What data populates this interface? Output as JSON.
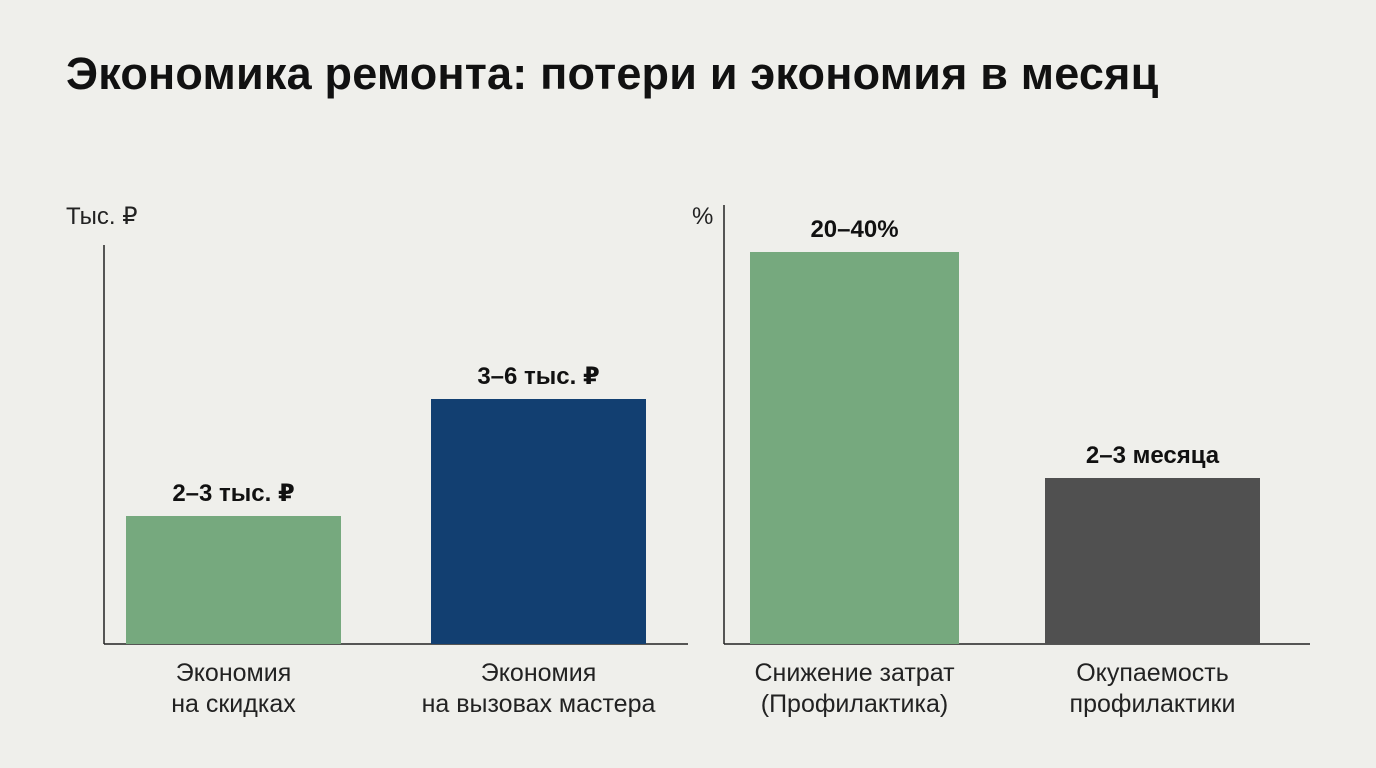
{
  "title": "Экономика ремонта: потери и экономия в месяц",
  "chart_data": [
    {
      "type": "bar",
      "unit_label": "Тыс. ₽",
      "categories": [
        [
          "Экономия",
          "на скидках"
        ],
        [
          "Экономия",
          "на вызовах мастера"
        ]
      ],
      "value_labels": [
        "2–3 тыс. ₽",
        "3–6 тыс. ₽"
      ],
      "values": [
        [
          2,
          3
        ],
        [
          3,
          6
        ]
      ],
      "colors": [
        "#76a97e",
        "#123f71"
      ]
    },
    {
      "type": "bar",
      "unit_label": "%",
      "categories": [
        [
          "Снижение затрат",
          "(Профилактика)"
        ],
        [
          "Окупаемость",
          "профилактики"
        ]
      ],
      "value_labels": [
        "20–40%",
        "2–3 месяца"
      ],
      "values": [
        [
          20,
          40
        ],
        [
          2,
          3
        ]
      ],
      "colors": [
        "#76a97e",
        "#505050"
      ]
    }
  ]
}
